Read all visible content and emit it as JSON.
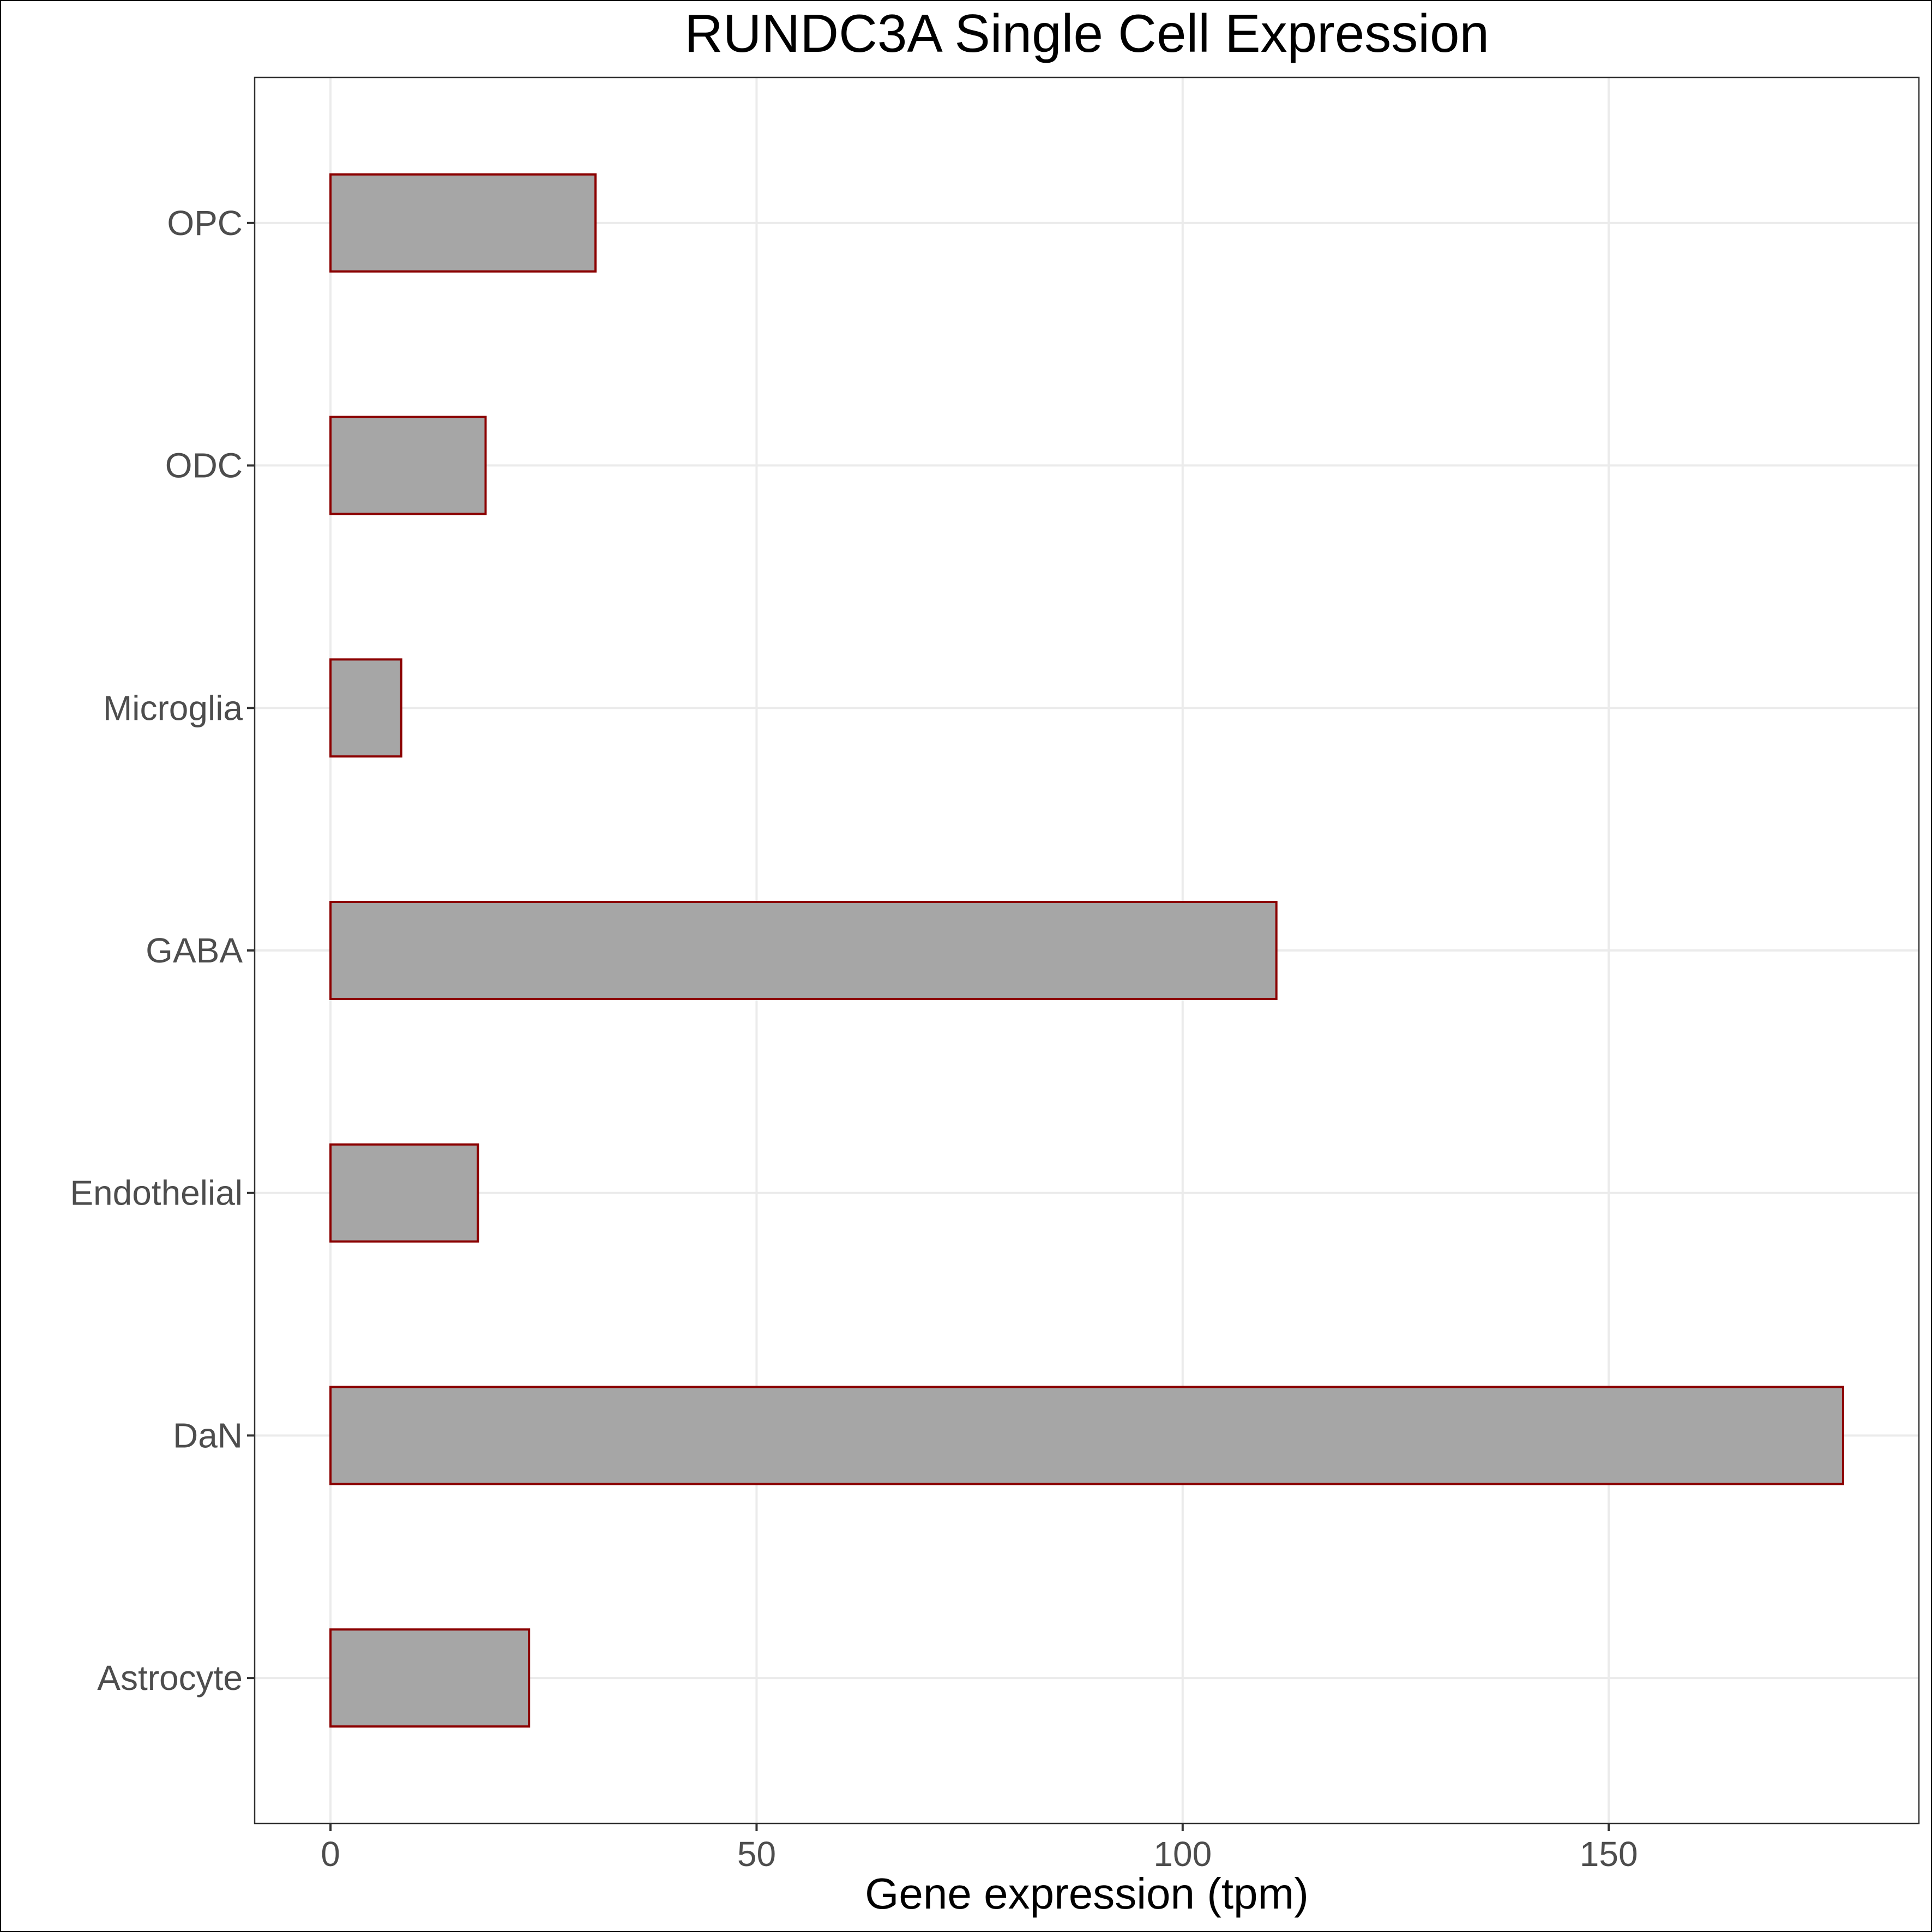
{
  "chart_data": {
    "type": "bar",
    "orientation": "horizontal",
    "title": "RUNDC3A Single Cell Expression",
    "xlabel": "Gene expression (tpm)",
    "ylabel": "",
    "categories": [
      "Astrocyte",
      "DaN",
      "Endothelial",
      "GABA",
      "Microglia",
      "ODC",
      "OPC"
    ],
    "values": [
      23.3,
      177.5,
      17.3,
      111.0,
      8.3,
      18.2,
      31.1
    ],
    "xlim": [
      -8.9,
      186.4
    ],
    "xticks": [
      0,
      50,
      100,
      150
    ],
    "xtick_labels": [
      "0",
      "50",
      "100",
      "150"
    ],
    "grid": true,
    "colors": {
      "bar_fill": "#a6a6a6",
      "bar_stroke": "#8b0000",
      "grid": "#ebebeb",
      "panel_border": "#333333",
      "tick_label": "#4d4d4d",
      "text": "#000000"
    }
  }
}
